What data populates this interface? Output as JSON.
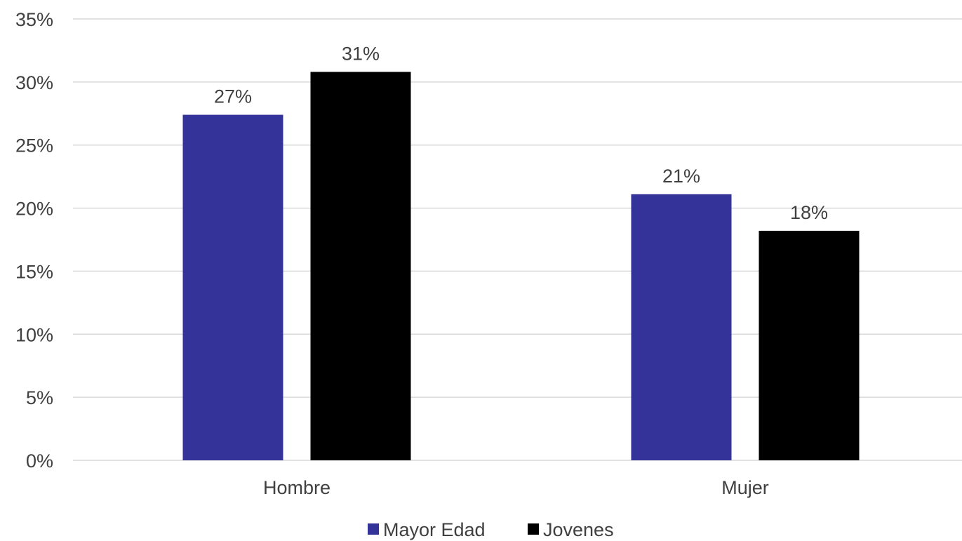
{
  "chart_data": {
    "type": "bar",
    "categories": [
      "Hombre",
      "Mujer"
    ],
    "series": [
      {
        "name": "Mayor Edad",
        "color": "#343399",
        "values": [
          0.274,
          0.211
        ],
        "labels": [
          "27%",
          "21%"
        ]
      },
      {
        "name": "Jovenes",
        "color": "#000000",
        "values": [
          0.308,
          0.182
        ],
        "labels": [
          "31%",
          "18%"
        ]
      }
    ],
    "ylim": [
      0,
      0.35
    ],
    "yticks": [
      0,
      0.05,
      0.1,
      0.15,
      0.2,
      0.25,
      0.3,
      0.35
    ],
    "ytick_labels": [
      "0%",
      "5%",
      "10%",
      "15%",
      "20%",
      "25%",
      "30%",
      "35%"
    ],
    "grid": true,
    "legend_position": "bottom",
    "title": "",
    "xlabel": "",
    "ylabel": ""
  }
}
